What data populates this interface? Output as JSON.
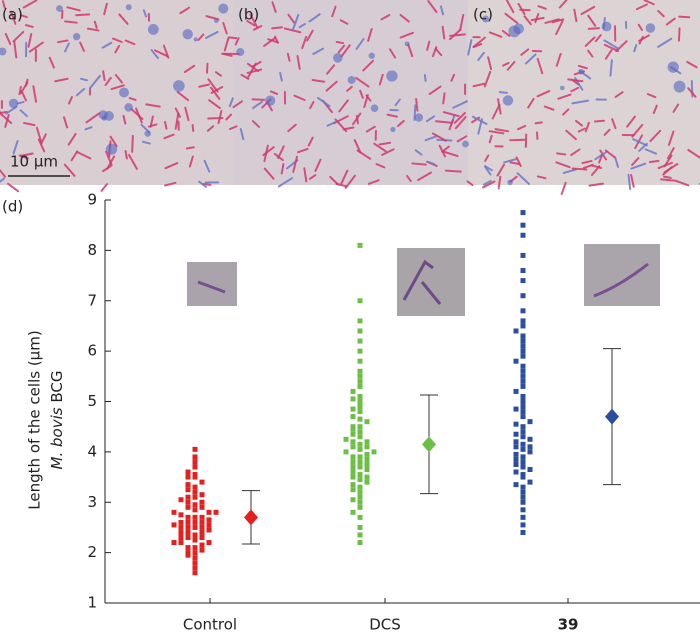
{
  "panels": {
    "labels": [
      "(a)",
      "(b)",
      "(c)"
    ],
    "scale_bar": "10 µm"
  },
  "chart_data": {
    "type": "strip",
    "panel_label": "(d)",
    "y_label": {
      "line1": "Length of the cells (µm)",
      "italic": "M. bovis",
      "rest": "BCG"
    },
    "categories": [
      "Control",
      "DCS",
      "39"
    ],
    "ylim": [
      1,
      9
    ],
    "yticks": [
      1,
      2,
      3,
      4,
      5,
      6,
      7,
      8,
      9
    ],
    "series": [
      {
        "color": "#e3201e",
        "mean": 2.7,
        "error": 0.53,
        "values": [
          1.6,
          1.7,
          1.8,
          1.9,
          1.95,
          2.0,
          2.0,
          2.05,
          2.1,
          2.1,
          2.15,
          2.2,
          2.2,
          2.2,
          2.25,
          2.3,
          2.3,
          2.3,
          2.35,
          2.4,
          2.4,
          2.4,
          2.45,
          2.5,
          2.5,
          2.5,
          2.5,
          2.55,
          2.55,
          2.6,
          2.6,
          2.6,
          2.6,
          2.65,
          2.7,
          2.7,
          2.7,
          2.75,
          2.8,
          2.8,
          2.8,
          2.85,
          2.9,
          2.9,
          2.95,
          3.0,
          3.0,
          3.05,
          3.1,
          3.1,
          3.15,
          3.2,
          3.25,
          3.3,
          3.35,
          3.4,
          3.5,
          3.5,
          3.55,
          3.6,
          3.7,
          3.8,
          3.9,
          4.05
        ]
      },
      {
        "color": "#6cbf45",
        "mean": 4.15,
        "error": 0.98,
        "values": [
          2.2,
          2.35,
          2.5,
          2.7,
          2.8,
          2.9,
          3.0,
          3.05,
          3.1,
          3.2,
          3.25,
          3.3,
          3.35,
          3.4,
          3.45,
          3.5,
          3.5,
          3.55,
          3.6,
          3.65,
          3.7,
          3.7,
          3.75,
          3.8,
          3.8,
          3.85,
          3.9,
          3.9,
          3.95,
          4.0,
          4.0,
          4.05,
          4.1,
          4.1,
          4.15,
          4.2,
          4.2,
          4.25,
          4.3,
          4.35,
          4.4,
          4.45,
          4.5,
          4.5,
          4.6,
          4.65,
          4.7,
          4.8,
          4.85,
          4.9,
          5.0,
          5.05,
          5.1,
          5.2,
          5.3,
          5.4,
          5.5,
          5.6,
          5.8,
          6.0,
          6.2,
          6.4,
          6.6,
          7.0,
          8.1
        ]
      },
      {
        "color": "#2b4ea0",
        "mean": 4.7,
        "error": 1.35,
        "values": [
          2.4,
          2.55,
          2.7,
          2.85,
          3.0,
          3.1,
          3.2,
          3.3,
          3.35,
          3.4,
          3.5,
          3.55,
          3.6,
          3.65,
          3.7,
          3.75,
          3.8,
          3.85,
          3.9,
          3.95,
          4.0,
          4.05,
          4.1,
          4.1,
          4.15,
          4.2,
          4.25,
          4.3,
          4.35,
          4.4,
          4.5,
          4.55,
          4.6,
          4.7,
          4.8,
          4.85,
          4.9,
          5.0,
          5.1,
          5.2,
          5.3,
          5.4,
          5.5,
          5.6,
          5.7,
          5.8,
          5.9,
          6.0,
          6.1,
          6.2,
          6.3,
          6.4,
          6.5,
          6.6,
          6.8,
          7.1,
          7.4,
          7.6,
          7.9,
          8.3,
          8.5,
          8.75
        ]
      }
    ]
  }
}
